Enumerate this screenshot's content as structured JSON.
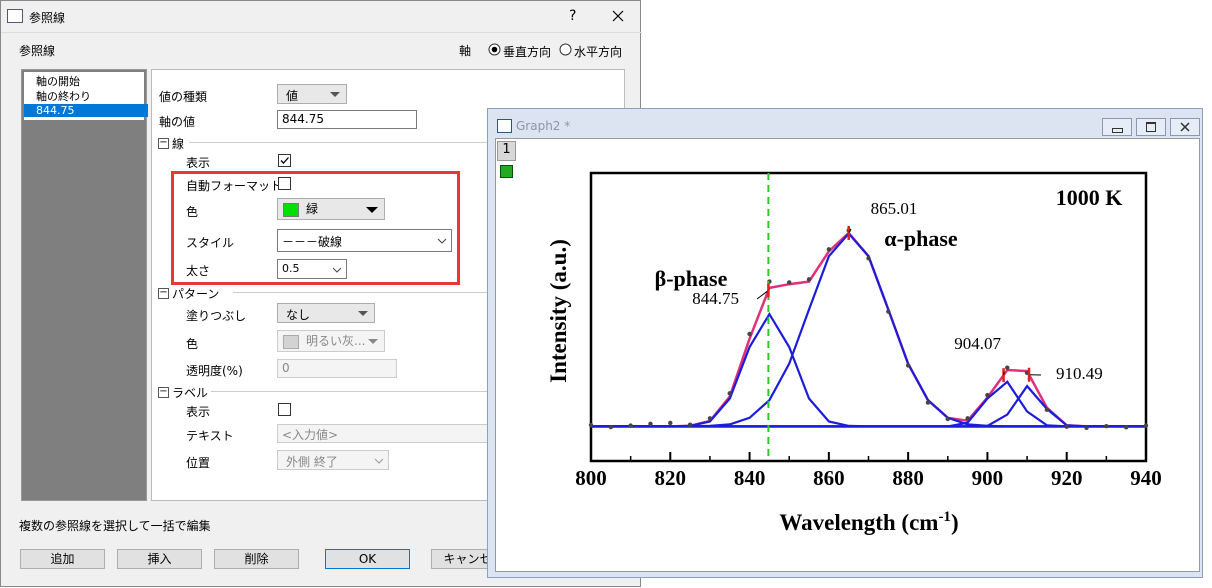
{
  "dialog": {
    "title": "参照線",
    "help": "?",
    "section": "参照線",
    "axis_label": "軸",
    "axis_options": [
      "垂直方向",
      "水平方向"
    ],
    "list": [
      "軸の開始",
      "軸の終わり",
      "844.75"
    ],
    "value_type": {
      "label": "値の種類",
      "value": "値"
    },
    "axis_value": {
      "label": "軸の値",
      "value": "844.75"
    },
    "line": {
      "title": "線",
      "show": "表示",
      "auto_format": "自動フォーマット",
      "color": {
        "label": "色",
        "value": "緑"
      },
      "style": {
        "label": "スタイル",
        "value": "－－－破線"
      },
      "width": {
        "label": "太さ",
        "value": "0.5"
      }
    },
    "pattern": {
      "title": "パターン",
      "fill": {
        "label": "塗りつぶし",
        "value": "なし"
      },
      "color": {
        "label": "色",
        "value": "明るい灰..."
      },
      "transparency": {
        "label": "透明度(%)",
        "value": "0"
      }
    },
    "label": {
      "title": "ラベル",
      "show": "表示",
      "text": {
        "label": "テキスト",
        "value": "<入力値>"
      },
      "position": {
        "label": "位置",
        "value": "外側 終了"
      }
    },
    "footer": "複数の参照線を選択して一括で編集",
    "buttons": [
      "追加",
      "挿入",
      "削除",
      "OK",
      "キャンセル"
    ]
  },
  "graph_window": {
    "title": "Graph2 *",
    "layer": "1"
  },
  "chart_data": {
    "type": "line",
    "temperature": "1000 K",
    "phase_labels": [
      "β-phase",
      "α-phase"
    ],
    "ylabel": "Intensity (a.u.)",
    "xlabel": {
      "text": "Wavelength (cm",
      "sup": "-1",
      "end": ")"
    },
    "x": [
      800,
      805,
      810,
      815,
      820,
      825,
      830,
      835,
      840,
      845,
      850,
      855,
      860,
      865,
      870,
      875,
      880,
      885,
      890,
      895,
      900,
      905,
      910,
      915,
      920,
      925,
      930,
      935,
      940
    ],
    "series": [
      {
        "color": "#454545",
        "values": [
          12.5,
          11.8,
          12.3,
          12.9,
          13.2,
          12.6,
          14.8,
          23.5,
          44.1,
          62.3,
          62.0,
          63.1,
          73.5,
          80.1,
          70.4,
          51.9,
          33.2,
          20.3,
          14.6,
          14.8,
          22.9,
          32.4,
          30.6,
          17.8,
          11.9,
          11.5,
          12.1,
          11.7,
          12.3
        ]
      },
      {
        "color": "#e0307a",
        "values": [
          12,
          12,
          12,
          12,
          12,
          12.2,
          13.9,
          22.4,
          42.5,
          60.1,
          61.4,
          62.3,
          72.8,
          79.2,
          71.1,
          52.6,
          33.8,
          21.1,
          15.0,
          14.0,
          22.0,
          31.6,
          31.2,
          18.5,
          12.4,
          12,
          12,
          12,
          12
        ]
      },
      {
        "color": "#1c1cdc",
        "values": [
          12,
          12,
          12,
          12,
          12,
          12.2,
          13.7,
          21.7,
          39.6,
          51,
          39.6,
          21.7,
          13.7,
          12.2,
          12,
          12,
          12,
          12,
          12,
          12,
          12,
          12,
          12,
          12,
          12,
          12,
          12,
          12,
          12
        ]
      },
      {
        "color": "#1c1cdc",
        "values": [
          12,
          12,
          12,
          12,
          12,
          12,
          12.2,
          12.7,
          15,
          21.1,
          33.8,
          52.6,
          71.1,
          79,
          71.1,
          52.6,
          33.8,
          21.1,
          15,
          12.7,
          12.2,
          12,
          12,
          12,
          12,
          12,
          12,
          12,
          12
        ]
      },
      {
        "color": "#1c1cdc",
        "values": [
          12,
          12,
          12,
          12,
          12,
          12,
          12,
          12,
          12,
          12,
          12,
          12,
          12,
          12,
          12,
          12,
          12,
          12,
          12,
          13.3,
          21.7,
          27.5,
          17.2,
          12.4,
          12,
          12,
          12,
          12,
          12
        ]
      },
      {
        "color": "#1c1cdc",
        "values": [
          12,
          12,
          12,
          12,
          12,
          12,
          12,
          12,
          12,
          12,
          12,
          12,
          12,
          12,
          12,
          12,
          12,
          12,
          12,
          12,
          12.2,
          16.1,
          26,
          18.1,
          12.4,
          12,
          12,
          12,
          12
        ]
      }
    ],
    "baseline": 12,
    "baseline_color": "#353570",
    "peaks": [
      844.75,
      865.01,
      904.07,
      910.49
    ],
    "peak_color": "#e02020",
    "ref_color": "#22cc22",
    "xlim": [
      800,
      940
    ],
    "xticks": [
      800,
      820,
      840,
      860,
      880,
      900,
      920,
      940
    ],
    "xminor_ticks": [
      810,
      830,
      850,
      870,
      890,
      910,
      930
    ],
    "ylim": [
      0,
      100
    ]
  }
}
